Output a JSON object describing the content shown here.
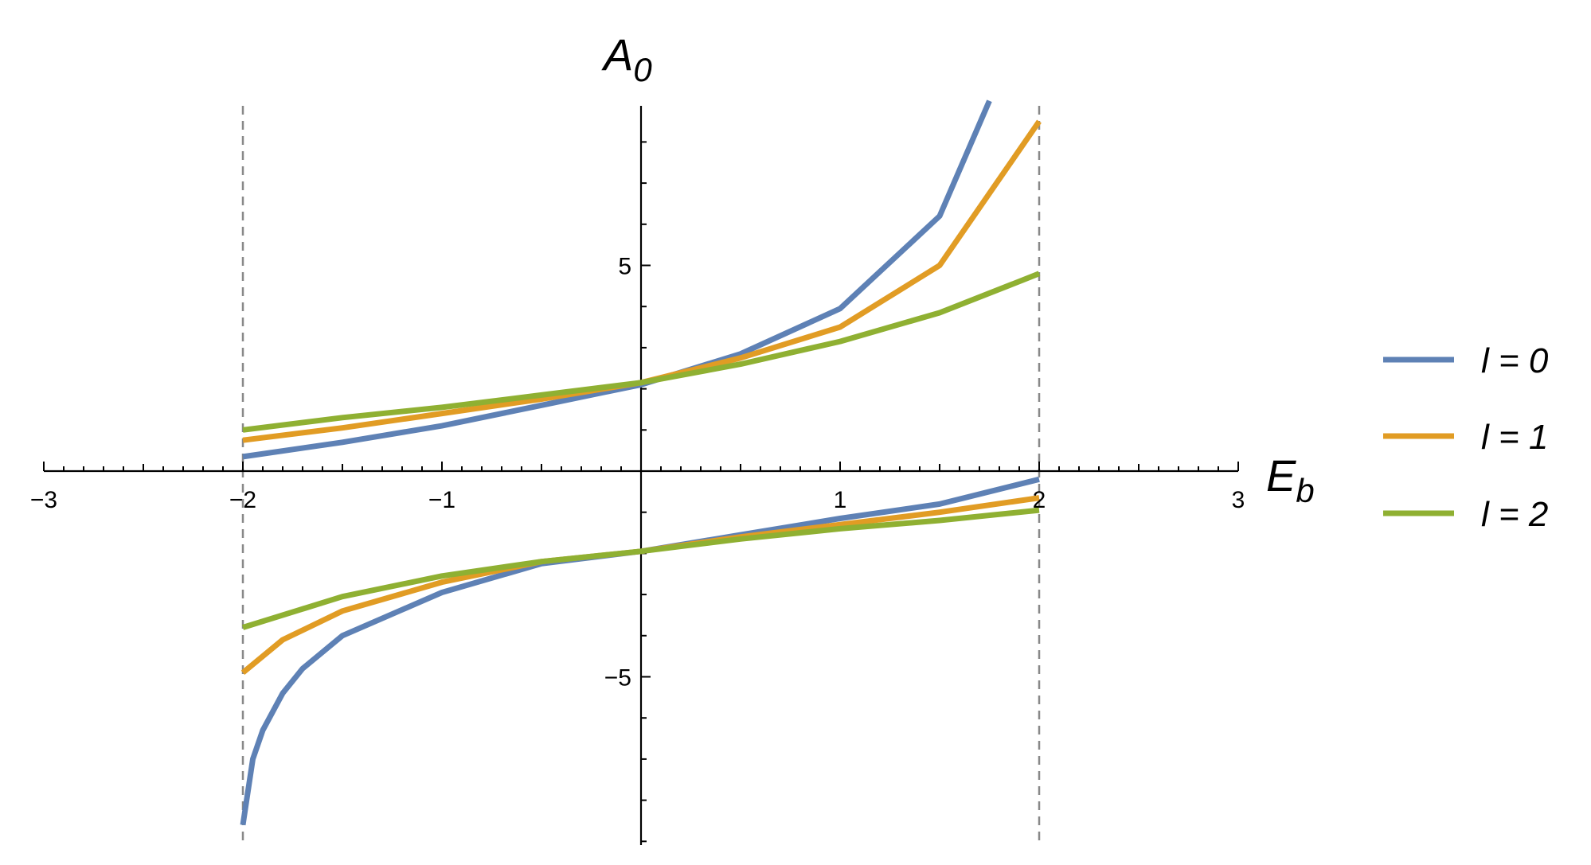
{
  "chart_data": {
    "type": "line",
    "title": "",
    "xlabel": "E_b",
    "ylabel": "A_0",
    "xlim": [
      -3,
      3
    ],
    "ylim": [
      -9.15,
      9
    ],
    "x_ticks": [
      -3,
      -2,
      -1,
      1,
      2,
      3
    ],
    "x_tick_labels": [
      "−3",
      "−2",
      "−1",
      "1",
      "2",
      "3"
    ],
    "y_ticks": [
      -5,
      5
    ],
    "y_tick_labels": [
      "−5",
      "5"
    ],
    "vertical_dashed_lines": [
      -2,
      2
    ],
    "grid": false,
    "legend_position": "right",
    "series": [
      {
        "name": "l = 0",
        "color": "#5e81b5",
        "branches": [
          {
            "x": [
              -2.0,
              -1.5,
              -1.0,
              -0.5,
              0.0,
              0.5,
              1.0,
              1.5,
              1.75
            ],
            "y": [
              0.35,
              0.7,
              1.1,
              1.6,
              2.1,
              2.85,
              3.95,
              6.2,
              9.0
            ]
          },
          {
            "x": [
              -2.0,
              -1.95,
              -1.9,
              -1.8,
              -1.7,
              -1.5,
              -1.0,
              -0.5,
              0.0,
              0.5,
              1.0,
              1.5,
              2.0
            ],
            "y": [
              -8.6,
              -7.0,
              -6.3,
              -5.4,
              -4.8,
              -4.0,
              -2.95,
              -2.25,
              -1.95,
              -1.55,
              -1.15,
              -0.8,
              -0.2
            ]
          }
        ]
      },
      {
        "name": "l = 1",
        "color": "#e19c24",
        "branches": [
          {
            "x": [
              -2.0,
              -1.5,
              -1.0,
              -0.5,
              0.0,
              0.5,
              1.0,
              1.5,
              2.0
            ],
            "y": [
              0.75,
              1.05,
              1.4,
              1.75,
              2.15,
              2.75,
              3.5,
              5.0,
              8.5
            ]
          },
          {
            "x": [
              -2.0,
              -1.8,
              -1.5,
              -1.0,
              -0.5,
              0.0,
              0.5,
              1.0,
              1.5,
              2.0
            ],
            "y": [
              -4.9,
              -4.1,
              -3.4,
              -2.7,
              -2.2,
              -1.95,
              -1.6,
              -1.3,
              -1.0,
              -0.65
            ]
          }
        ]
      },
      {
        "name": "l = 2",
        "color": "#8fb032",
        "branches": [
          {
            "x": [
              -2.0,
              -1.5,
              -1.0,
              -0.5,
              0.0,
              0.5,
              1.0,
              1.5,
              2.0
            ],
            "y": [
              1.0,
              1.3,
              1.55,
              1.85,
              2.15,
              2.6,
              3.15,
              3.85,
              4.8
            ]
          },
          {
            "x": [
              -2.0,
              -1.5,
              -1.0,
              -0.5,
              0.0,
              0.5,
              1.0,
              1.5,
              2.0
            ],
            "y": [
              -3.8,
              -3.05,
              -2.55,
              -2.2,
              -1.95,
              -1.65,
              -1.4,
              -1.2,
              -0.95
            ]
          }
        ]
      }
    ]
  }
}
